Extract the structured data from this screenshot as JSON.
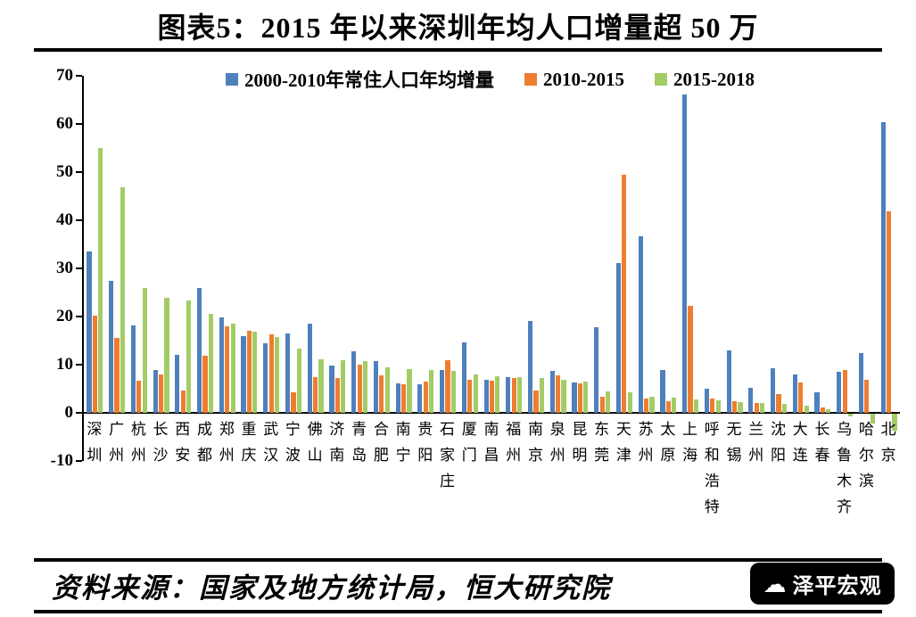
{
  "header": {
    "title": "图表5：2015 年以来深圳年均人口增量超 50 万"
  },
  "footer": {
    "source": "资料来源：国家及地方统计局，恒大研究院",
    "logo_text": "泽平宏观"
  },
  "colors": {
    "blue": "#4e80bc",
    "orange": "#ee7d30",
    "green": "#a3cc66",
    "axis": "#000000"
  },
  "chart_data": {
    "type": "bar",
    "title": "图表5：2015 年以来深圳年均人口增量超 50 万",
    "xlabel": "",
    "ylabel": "",
    "ylim": [
      -10,
      70
    ],
    "yticks": [
      70,
      60,
      50,
      40,
      30,
      20,
      10,
      0,
      -10
    ],
    "grid": false,
    "legend_position": "top",
    "categories": [
      "深圳",
      "广州",
      "杭州",
      "长沙",
      "西安",
      "成都",
      "郑州",
      "重庆",
      "武汉",
      "宁波",
      "佛山",
      "济南",
      "青岛",
      "合肥",
      "南宁",
      "贵阳",
      "石家庄",
      "厦门",
      "南昌",
      "福州",
      "南京",
      "泉州",
      "昆明",
      "东莞",
      "天津",
      "苏州",
      "太原",
      "上海",
      "呼和浩特",
      "无锡",
      "兰州",
      "沈阳",
      "大连",
      "长春",
      "乌鲁木齐",
      "哈尔滨",
      "北京"
    ],
    "series": [
      {
        "name": "2000-2010年常住人口年均增量",
        "color": "#4e80bc",
        "values": [
          33.5,
          27.5,
          18.1,
          8.8,
          12.0,
          26.0,
          19.8,
          15.9,
          14.5,
          16.4,
          18.5,
          9.8,
          12.8,
          10.8,
          6.2,
          6.0,
          8.9,
          14.6,
          6.9,
          7.5,
          19.0,
          8.7,
          6.3,
          17.8,
          31.2,
          36.7,
          8.9,
          66.2,
          5.0,
          12.9,
          5.1,
          9.2,
          7.9,
          4.2,
          8.5,
          12.4,
          60.4
        ]
      },
      {
        "name": "2010-2015",
        "color": "#ee7d30",
        "values": [
          20.2,
          15.5,
          6.6,
          7.9,
          4.6,
          11.9,
          18.0,
          17.0,
          16.3,
          4.2,
          7.5,
          7.2,
          10.0,
          7.8,
          6.0,
          6.4,
          11.0,
          6.8,
          6.6,
          7.3,
          4.6,
          7.8,
          6.1,
          3.3,
          49.5,
          3.0,
          2.5,
          22.3,
          2.9,
          2.5,
          2.1,
          3.9,
          6.3,
          1.2,
          8.8,
          6.9,
          41.9
        ]
      },
      {
        "name": "2015-2018",
        "color": "#a3cc66",
        "values": [
          55.0,
          46.8,
          26.0,
          23.9,
          23.3,
          20.5,
          18.5,
          16.8,
          15.8,
          13.3,
          11.2,
          11.0,
          10.8,
          9.5,
          9.0,
          8.8,
          8.7,
          8.0,
          7.6,
          7.4,
          7.2,
          6.9,
          6.4,
          4.5,
          4.3,
          3.4,
          3.1,
          2.8,
          2.6,
          2.3,
          2.1,
          1.8,
          1.4,
          0.8,
          -0.5,
          -2.0,
          -3.5
        ]
      }
    ]
  }
}
